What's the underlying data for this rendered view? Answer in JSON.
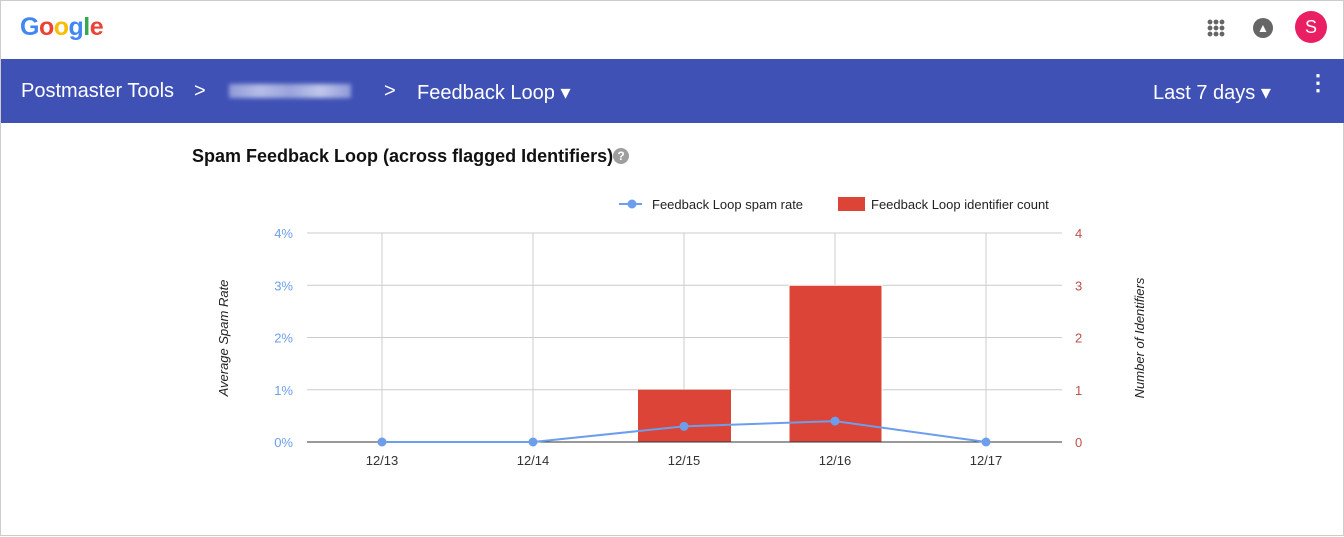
{
  "header": {
    "logo": "Google",
    "avatar_letter": "S",
    "avatar_color": "#e91e63"
  },
  "nav": {
    "app": "Postmaster Tools",
    "separator": ">",
    "page": "Feedback Loop ▾",
    "range": "Last 7 days ▾"
  },
  "title": "Spam Feedback Loop (across flagged Identifiers)",
  "help": "?",
  "chart_data": {
    "type": "bar+line",
    "categories": [
      "12/13",
      "12/14",
      "12/15",
      "12/16",
      "12/17"
    ],
    "series": [
      {
        "name": "Feedback Loop spam rate",
        "type": "line",
        "axis": "left",
        "color": "#6d9eeb",
        "values": [
          0,
          0,
          0.3,
          0.4,
          0
        ]
      },
      {
        "name": "Feedback Loop identifier count",
        "type": "bar",
        "axis": "right",
        "color": "#db4437",
        "values": [
          0,
          0,
          1,
          3,
          0
        ]
      }
    ],
    "ylabel_left": "Average Spam Rate",
    "ylabel_right": "Number of Identifiers",
    "yticks_left": [
      "0%",
      "1%",
      "2%",
      "3%",
      "4%"
    ],
    "yticks_right": [
      "0",
      "1",
      "2",
      "3",
      "4"
    ],
    "ylim_left": [
      0,
      4
    ],
    "ylim_right": [
      0,
      4
    ],
    "grid": true,
    "legend": "top-right"
  }
}
